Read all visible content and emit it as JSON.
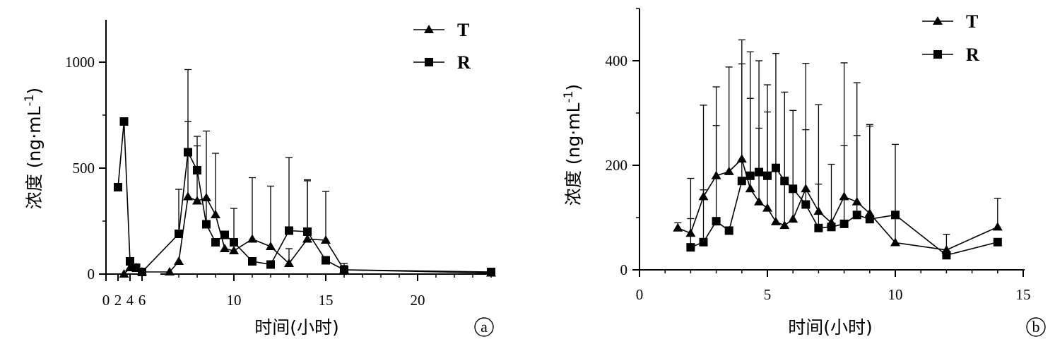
{
  "chart_data": [
    {
      "type": "line",
      "panel_label": "a",
      "xlabel": "时间(小时)",
      "ylabel_main": "浓度 (ng·mL",
      "ylabel_sup": "-1",
      "ylabel_end": ")",
      "ylim": [
        0,
        1200
      ],
      "yticks": [
        0,
        500,
        1000
      ],
      "x_segments": [
        {
          "range": [
            0,
            6
          ],
          "ticks": [
            0,
            2,
            4,
            6
          ]
        },
        {
          "range": [
            6,
            24
          ],
          "ticks": [
            10,
            15,
            20
          ]
        }
      ],
      "legend_position": "top-right",
      "series": [
        {
          "name": "T",
          "marker": "triangle",
          "x": [
            3,
            4,
            5,
            6,
            6.5,
            7,
            7.5,
            8,
            8.5,
            9,
            9.5,
            10,
            11,
            12,
            13,
            14,
            15,
            16,
            24
          ],
          "y": [
            0,
            30,
            30,
            10,
            10,
            60,
            365,
            345,
            360,
            280,
            120,
            110,
            165,
            130,
            50,
            165,
            160,
            20,
            5
          ],
          "err": [
            0,
            0,
            0,
            0,
            0,
            0,
            355,
            260,
            315,
            290,
            0,
            0,
            290,
            285,
            70,
            280,
            230,
            20,
            0
          ]
        },
        {
          "name": "R",
          "marker": "square",
          "x": [
            2,
            3,
            4,
            5,
            6,
            7,
            7.5,
            8,
            8.5,
            9,
            9.5,
            10,
            11,
            12,
            13,
            14,
            15,
            16,
            24
          ],
          "y": [
            410,
            720,
            60,
            30,
            10,
            190,
            575,
            490,
            235,
            150,
            185,
            150,
            60,
            45,
            205,
            200,
            65,
            20,
            10
          ],
          "err": [
            0,
            0,
            0,
            0,
            0,
            210,
            390,
            160,
            120,
            0,
            0,
            160,
            0,
            0,
            345,
            240,
            0,
            30,
            0
          ]
        }
      ]
    },
    {
      "type": "line",
      "panel_label": "b",
      "xlabel": "时间(小时)",
      "ylabel_main": "浓度 (ng·mL",
      "ylabel_sup": "-1",
      "ylabel_end": ")",
      "xlim": [
        0,
        15
      ],
      "xticks": [
        0,
        5,
        10,
        15
      ],
      "ylim": [
        0,
        500
      ],
      "yticks": [
        0,
        200,
        400
      ],
      "legend_position": "top-right",
      "series": [
        {
          "name": "T",
          "marker": "triangle",
          "x": [
            1.5,
            2,
            2.5,
            3,
            3.5,
            4,
            4.33,
            4.67,
            5,
            5.33,
            5.67,
            6,
            6.5,
            7,
            7.5,
            8,
            8.5,
            9,
            10,
            12,
            14
          ],
          "y": [
            80,
            70,
            140,
            180,
            188,
            212,
            155,
            130,
            118,
            92,
            85,
            97,
            155,
            112,
            90,
            140,
            130,
            108,
            52,
            38,
            82
          ],
          "err": [
            10,
            105,
            175,
            170,
            200,
            228,
            262,
            270,
            236,
            322,
            255,
            208,
            240,
            204,
            0,
            256,
            228,
            170,
            188,
            30,
            55
          ]
        },
        {
          "name": "R",
          "marker": "square",
          "x": [
            2,
            2.5,
            3,
            3.5,
            4,
            4.33,
            4.67,
            5,
            5.33,
            5.67,
            6,
            6.5,
            7,
            7.5,
            8,
            8.5,
            9,
            10,
            12,
            14
          ],
          "y": [
            43,
            53,
            93,
            75,
            170,
            180,
            187,
            180,
            195,
            170,
            155,
            125,
            80,
            82,
            88,
            105,
            97,
            105,
            28,
            53
          ],
          "err": [
            55,
            100,
            183,
            0,
            224,
            148,
            84,
            122,
            0,
            0,
            0,
            143,
            84,
            120,
            150,
            152,
            178,
            0,
            0,
            0
          ]
        }
      ]
    }
  ]
}
